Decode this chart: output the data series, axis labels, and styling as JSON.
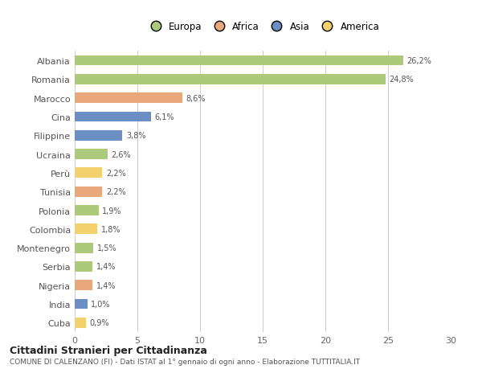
{
  "categories": [
    "Albania",
    "Romania",
    "Marocco",
    "Cina",
    "Filippine",
    "Ucraina",
    "Perù",
    "Tunisia",
    "Polonia",
    "Colombia",
    "Montenegro",
    "Serbia",
    "Nigeria",
    "India",
    "Cuba"
  ],
  "values": [
    26.2,
    24.8,
    8.6,
    6.1,
    3.8,
    2.6,
    2.2,
    2.2,
    1.9,
    1.8,
    1.5,
    1.4,
    1.4,
    1.0,
    0.9
  ],
  "labels": [
    "26,2%",
    "24,8%",
    "8,6%",
    "6,1%",
    "3,8%",
    "2,6%",
    "2,2%",
    "2,2%",
    "1,9%",
    "1,8%",
    "1,5%",
    "1,4%",
    "1,4%",
    "1,0%",
    "0,9%"
  ],
  "colors": [
    "#adc97a",
    "#adc97a",
    "#e8a87c",
    "#6b8fc4",
    "#6b8fc4",
    "#adc97a",
    "#f2d06b",
    "#e8a87c",
    "#adc97a",
    "#f2d06b",
    "#adc97a",
    "#adc97a",
    "#e8a87c",
    "#6b8fc4",
    "#f2d06b"
  ],
  "legend_labels": [
    "Europa",
    "Africa",
    "Asia",
    "America"
  ],
  "legend_colors": [
    "#adc97a",
    "#e8a87c",
    "#6b8fc4",
    "#f2d06b"
  ],
  "xlim": [
    0,
    30
  ],
  "xticks": [
    0,
    5,
    10,
    15,
    20,
    25,
    30
  ],
  "title1": "Cittadini Stranieri per Cittadinanza",
  "title2": "COMUNE DI CALENZANO (FI) - Dati ISTAT al 1° gennaio di ogni anno - Elaborazione TUTTITALIA.IT",
  "background_color": "#ffffff",
  "grid_color": "#cccccc",
  "bar_height": 0.55
}
